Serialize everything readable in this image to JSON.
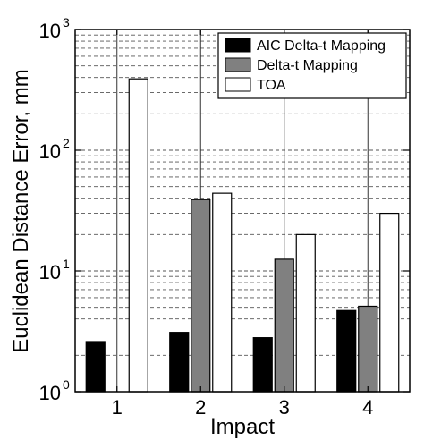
{
  "chart_data": {
    "type": "bar",
    "title": "",
    "xlabel": "Impact",
    "ylabel": "Euclidean Distance Error, mm",
    "yscale": "log",
    "ylim": [
      1,
      1000
    ],
    "yticks": [
      {
        "base": "10",
        "exp": "0",
        "value": 1
      },
      {
        "base": "10",
        "exp": "1",
        "value": 10
      },
      {
        "base": "10",
        "exp": "2",
        "value": 100
      },
      {
        "base": "10",
        "exp": "3",
        "value": 1000
      }
    ],
    "categories": [
      "1",
      "2",
      "3",
      "4"
    ],
    "series": [
      {
        "name": "AIC Delta-t Mapping",
        "color": "#000000",
        "values": [
          2.6,
          3.1,
          2.8,
          4.7
        ]
      },
      {
        "name": "Delta-t Mapping",
        "color": "#808080",
        "values": [
          null,
          39,
          12.5,
          5.1
        ]
      },
      {
        "name": "TOA",
        "color": "#ffffff",
        "values": [
          390,
          44,
          20,
          30
        ]
      }
    ],
    "grid": "dashed minor on log scale, solid at major x ticks",
    "legend_position": "top-right"
  }
}
